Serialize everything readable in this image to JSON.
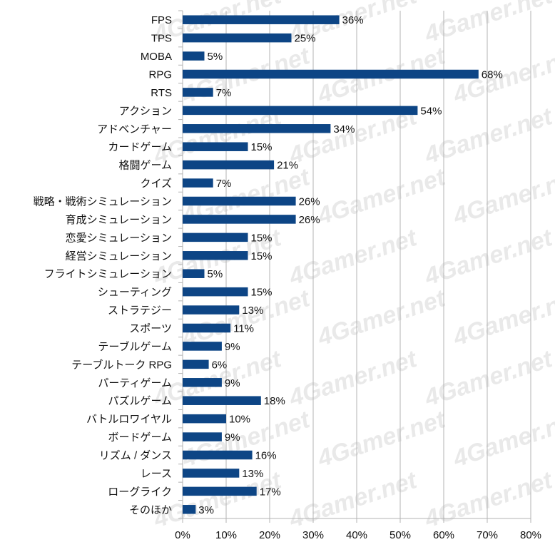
{
  "chart_data": {
    "type": "bar",
    "orientation": "horizontal",
    "title": "",
    "xlabel": "",
    "ylabel": "",
    "xlim": [
      0,
      80
    ],
    "x_ticks": [
      "0%",
      "10%",
      "20%",
      "30%",
      "40%",
      "50%",
      "60%",
      "70%",
      "80%"
    ],
    "grid": true,
    "bar_color": "#0d4585",
    "watermark": "4Gamer.net",
    "categories": [
      "FPS",
      "TPS",
      "MOBA",
      "RPG",
      "RTS",
      "アクション",
      "アドベンチャー",
      "カードゲーム",
      "格闘ゲーム",
      "クイズ",
      "戦略・戦術シミュレーション",
      "育成シミュレーション",
      "恋愛シミュレーション",
      "経営シミュレーション",
      "フライトシミュレーション",
      "シューティング",
      "ストラテジー",
      "スポーツ",
      "テーブルゲーム",
      "テーブルトーク RPG",
      "パーティゲーム",
      "パズルゲーム",
      "バトルロワイヤル",
      "ボードゲーム",
      "リズム / ダンス",
      "レース",
      "ローグライク",
      "そのほか"
    ],
    "values": [
      36,
      25,
      5,
      68,
      7,
      54,
      34,
      15,
      21,
      7,
      26,
      26,
      15,
      15,
      5,
      15,
      13,
      11,
      9,
      6,
      9,
      18,
      10,
      9,
      16,
      13,
      17,
      3
    ],
    "value_labels": [
      "36%",
      "25%",
      "5%",
      "68%",
      "7%",
      "54%",
      "34%",
      "15%",
      "21%",
      "7%",
      "26%",
      "26%",
      "15%",
      "15%",
      "5%",
      "15%",
      "13%",
      "11%",
      "9%",
      "6%",
      "9%",
      "18%",
      "10%",
      "9%",
      "16%",
      "13%",
      "17%",
      "3%"
    ]
  }
}
